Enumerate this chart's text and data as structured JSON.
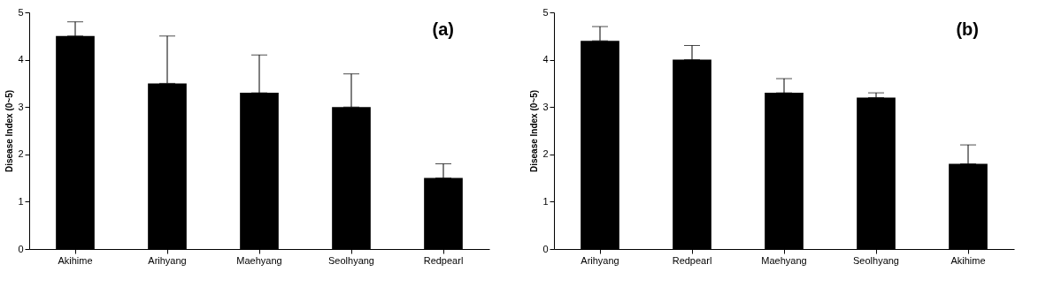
{
  "chart_data": [
    {
      "type": "bar",
      "ylabel": "Disease Index (0~5)",
      "annotations": [
        "(a)"
      ],
      "categories": [
        "Akihime",
        "Arihyang",
        "Maehyang",
        "Seolhyang",
        "Redpearl"
      ],
      "series": [
        {
          "color": "#000000",
          "values": [
            4.5,
            3.5,
            3.3,
            3.0,
            1.5
          ],
          "errors": [
            [
              4.5,
              4.8
            ],
            [
              3.5,
              4.5
            ],
            [
              3.3,
              4.1
            ],
            [
              3.0,
              3.7
            ],
            [
              1.5,
              1.8
            ]
          ]
        }
      ],
      "ylim": [
        0,
        5
      ],
      "yticks": [
        0,
        1,
        2,
        3,
        4,
        5
      ],
      "grid": false
    },
    {
      "type": "bar",
      "ylabel": "Disease Index (0~5)",
      "annotations": [
        "(b)"
      ],
      "categories": [
        "Arihyang",
        "Redpearl",
        "Maehyang",
        "Seolhyang",
        "Akihime"
      ],
      "series": [
        {
          "color": "#000000",
          "values": [
            4.4,
            4.0,
            3.3,
            3.2,
            1.8
          ],
          "errors": [
            [
              4.4,
              4.7
            ],
            [
              4.0,
              4.3
            ],
            [
              3.3,
              3.6
            ],
            [
              3.2,
              3.3
            ],
            [
              1.8,
              2.2
            ]
          ]
        }
      ],
      "ylim": [
        0,
        5
      ],
      "yticks": [
        0,
        1,
        2,
        3,
        4,
        5
      ],
      "grid": false
    }
  ]
}
